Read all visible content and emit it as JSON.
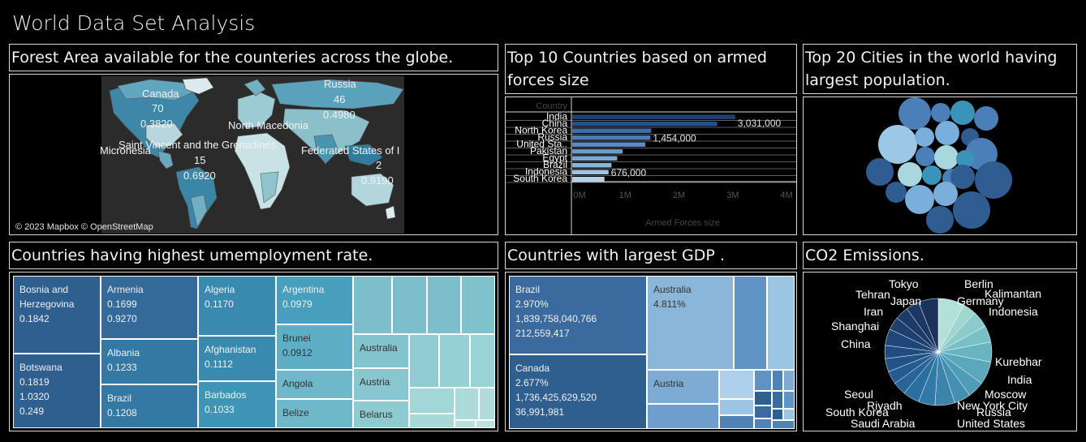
{
  "dashboard_title": "World Data Set Analysis",
  "panels": {
    "forest_title": "Forest Area available for the counteries across the globe.",
    "armed_title": "Top 10 Countries based on armed forces size",
    "cities_title": "Top 20 Cities in the world having largest population.",
    "unemp_title": "Countries having highest umemployment rate.",
    "gdp_title": "Countries with largest GDP .",
    "co2_title": "CO2 Emissions."
  },
  "map": {
    "attribution": "© 2023 Mapbox © OpenStreetMap",
    "labels": {
      "canada_name": "Canada",
      "canada_rank": "70",
      "canada_value": "0.3820",
      "russia_name": "Russia",
      "russia_rank": "46",
      "russia_value": "0.4980",
      "north_macedonia": "North Macedonia",
      "svg_name": "Saint Vincent and the Grenadines",
      "svg_rank": "15",
      "svg_value": "0.6920",
      "micronesia": "Micronesia",
      "fsm_name": "Federated States of I",
      "fsm_rank": "2",
      "fsm_value": "0.9190"
    }
  },
  "chart_data": [
    {
      "type": "bar",
      "orientation": "horizontal",
      "title": "Top 10 Countries based on armed forces size",
      "column_header": "Country",
      "xlabel": "Armed Forces size",
      "categories": [
        "India",
        "China",
        "North Korea",
        "Russia",
        "United Sta..",
        "Pakistan",
        "Egypt",
        "Brazil",
        "Indonesia",
        "South Korea"
      ],
      "values": [
        3031000,
        2695000,
        1469000,
        1454000,
        1359000,
        936000,
        836000,
        730000,
        676000,
        599000
      ],
      "data_labels": {
        "India": "3,031,000",
        "Russia": "1,454,000",
        "Indonesia": "676,000"
      },
      "xticks": [
        "0M",
        "1M",
        "2M",
        "3M",
        "4M"
      ],
      "xlim": [
        0,
        4000000
      ],
      "colors": [
        "#1f3f6e",
        "#25508a",
        "#3d6ea6",
        "#4a7db5",
        "#5a8cc2",
        "#6b9bcb",
        "#7aa8d4",
        "#8bb6dc",
        "#9dc4e4",
        "#b0d2eb"
      ]
    },
    {
      "type": "pie",
      "title": "CO2 Emissions.",
      "labels": [
        "Tokyo",
        "Berlin",
        "Kalimantan",
        "Germany",
        "Indonesia",
        "Kurebhar",
        "India",
        "Moscow",
        "New York City",
        "Russia",
        "United States",
        "Saudi Arabia",
        "Riyadh",
        "South Korea",
        "Seoul",
        "China",
        "Shanghai",
        "Iran",
        "Tehran",
        "Japan"
      ],
      "values": [
        8,
        4,
        5,
        5,
        6,
        7,
        5,
        5,
        6,
        5,
        5,
        4,
        4,
        4,
        4,
        5,
        4,
        4,
        4,
        6
      ],
      "colors": [
        "#b3e0d9",
        "#9fd6d0",
        "#8ccbcb",
        "#79c0c6",
        "#69b4c1",
        "#5ba8bc",
        "#4f9cb7",
        "#4490b2",
        "#3b85ad",
        "#3279a7",
        "#2c6ea0",
        "#286498",
        "#255b90",
        "#225388",
        "#204c80",
        "#1f4678",
        "#1e4070",
        "#1d3b69",
        "#1c3762",
        "#1b335c"
      ]
    }
  ],
  "bubbles": {
    "colors": [
      "#2f5d91",
      "#4a7fb8",
      "#7aaedb",
      "#9cc8e6",
      "#3a93b8",
      "#6bb3c9",
      "#a8d8de"
    ]
  },
  "treemap_unemployment": {
    "cells": [
      {
        "text": "Bosnia and\nHerzegovina\n0.1842"
      },
      {
        "text": "Botswana\n0.1819\n1.0320\n0.249"
      },
      {
        "text": "Armenia\n0.1699\n0.9270"
      },
      {
        "text": "Albania\n0.1233"
      },
      {
        "text": "Brazil\n0.1208"
      },
      {
        "text": "Algeria\n0.1170"
      },
      {
        "text": "Afghanistan\n0.1112"
      },
      {
        "text": "Barbados\n0.1033"
      },
      {
        "text": "Argentina\n0.0979"
      },
      {
        "text": "Brunei\n0.0912"
      },
      {
        "text": "Angola"
      },
      {
        "text": "Belize"
      },
      {
        "text": "Australia"
      },
      {
        "text": "Austria"
      },
      {
        "text": "Belarus"
      }
    ]
  },
  "treemap_gdp": {
    "cells": [
      {
        "text": "Brazil\n2.970%\n1,839,758,040,766\n212,559,417"
      },
      {
        "text": "Canada\n2.677%\n1,736,425,629,520\n36,991,981"
      },
      {
        "text": "Australia\n4.811%"
      },
      {
        "text": "Austria"
      }
    ]
  },
  "co2_labels": [
    "Tokyo",
    "Berlin",
    "Kalimantan",
    "Tehran",
    "Japan",
    "Germany",
    "Iran",
    "Indonesia",
    "Shanghai",
    "China",
    "Kurebhar",
    "India",
    "Seoul",
    "Moscow",
    "Riyadh",
    "New York City",
    "South Korea",
    "Russia",
    "Saudi Arabia",
    "United States"
  ]
}
